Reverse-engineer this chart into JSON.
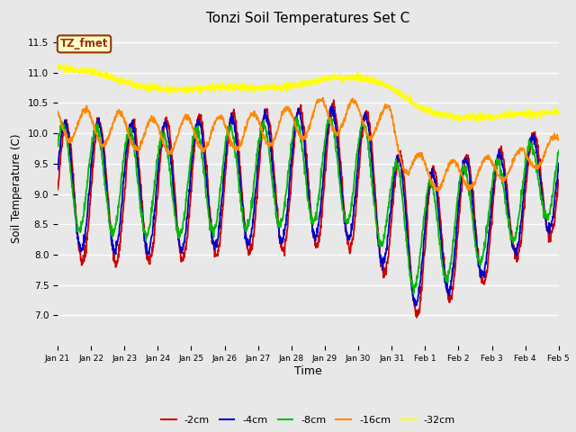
{
  "title": "Tonzi Soil Temperatures Set C",
  "xlabel": "Time",
  "ylabel": "Soil Temperature (C)",
  "ylim": [
    6.5,
    11.7
  ],
  "yticks": [
    7.0,
    7.5,
    8.0,
    8.5,
    9.0,
    9.5,
    10.0,
    10.5,
    11.0,
    11.5
  ],
  "colors": {
    "-2cm": "#cc0000",
    "-4cm": "#0000cc",
    "-8cm": "#00bb00",
    "-16cm": "#ff8800",
    "-32cm": "#ffff00"
  },
  "bg_color": "#e8e8e8",
  "annotation_text": "TZ_fmet",
  "annotation_bg": "#ffffcc",
  "annotation_border": "#993300",
  "xtick_labels": [
    "Jan 21",
    "Jan 22",
    "Jan 23",
    "Jan 24",
    "Jan 25",
    "Jan 26",
    "Jan 27",
    "Jan 28",
    "Jan 29",
    "Jan 30",
    "Jan 31",
    "Feb 1",
    "Feb 2",
    "Feb 3",
    "Feb 4",
    "Feb 5"
  ],
  "xtick_positions": [
    0,
    1,
    2,
    3,
    4,
    5,
    6,
    7,
    8,
    9,
    10,
    11,
    12,
    13,
    14,
    15
  ]
}
